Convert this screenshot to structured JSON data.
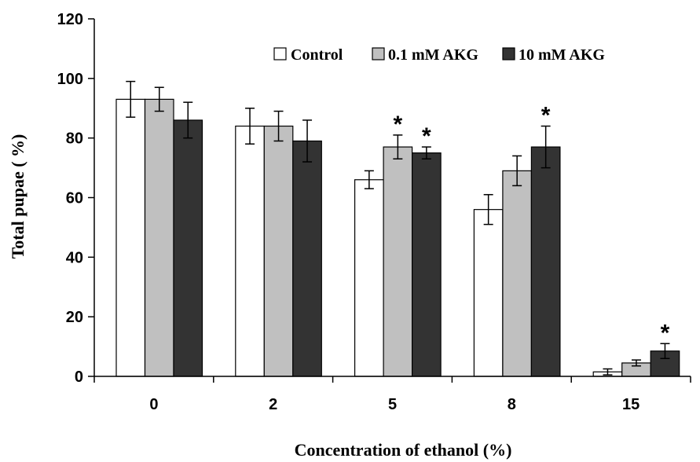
{
  "chart_data": {
    "type": "bar",
    "title": "",
    "xlabel": "Concentration of ethanol (%)",
    "ylabel": "Total pupae ( %)",
    "ylim": [
      0,
      120
    ],
    "yticks": [
      0,
      20,
      40,
      60,
      80,
      100,
      120
    ],
    "categories": [
      "0",
      "2",
      "5",
      "8",
      "15"
    ],
    "legend_position": "top-right",
    "grid": false,
    "series": [
      {
        "name": "Control",
        "color": "#ffffff",
        "values": [
          93,
          84,
          66,
          56,
          1.5
        ],
        "errors": [
          6,
          6,
          3,
          5,
          1
        ],
        "significant": [
          false,
          false,
          false,
          false,
          false
        ]
      },
      {
        "name": "0.1 mM AKG",
        "color": "#c0c0c0",
        "values": [
          93,
          84,
          77,
          69,
          4.5
        ],
        "errors": [
          4,
          5,
          4,
          5,
          1
        ],
        "significant": [
          false,
          false,
          true,
          false,
          false
        ]
      },
      {
        "name": "10 mM AKG",
        "color": "#333333",
        "values": [
          86,
          79,
          75,
          77,
          8.5
        ],
        "errors": [
          6,
          7,
          2,
          7,
          2.5
        ],
        "significant": [
          false,
          false,
          true,
          true,
          true
        ]
      }
    ],
    "significance_marker": "*"
  }
}
